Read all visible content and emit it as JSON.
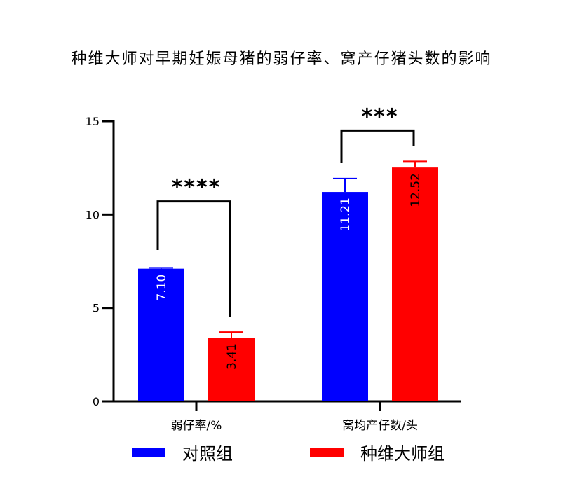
{
  "chart_data": {
    "type": "bar",
    "title": "种维大师对早期妊娠母猪的弱仔率、窝产仔猪头数的影响",
    "categories": [
      "弱仔率/%",
      "窝均产仔数/头"
    ],
    "ylim": [
      0,
      15
    ],
    "yticks": [
      0,
      5,
      10,
      15
    ],
    "series": [
      {
        "name": "对照组",
        "color": "#0000ff",
        "values": [
          7.1,
          11.21
        ],
        "errors": [
          0.05,
          0.72
        ],
        "labels": [
          "7.10",
          "11.21"
        ],
        "label_color": "#ffffff"
      },
      {
        "name": "种维大师组",
        "color": "#ff0000",
        "values": [
          3.41,
          12.52
        ],
        "errors": [
          0.3,
          0.33
        ],
        "labels": [
          "3.41",
          "12.52"
        ],
        "label_color": "#000000"
      }
    ],
    "significance": [
      {
        "category": 0,
        "text": "****",
        "y": 10.7
      },
      {
        "category": 1,
        "text": "***",
        "y": 14.5
      }
    ],
    "grid": false,
    "legend": "bottom"
  }
}
